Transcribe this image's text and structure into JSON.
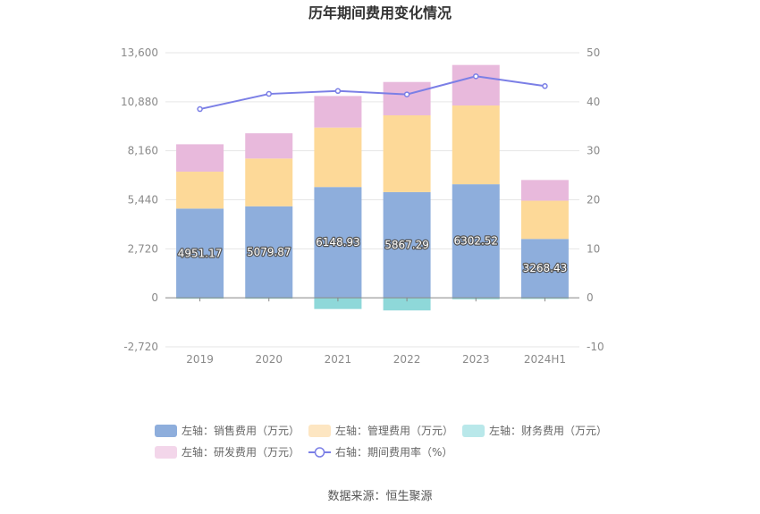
{
  "chart_data": {
    "type": "bar",
    "title": "历年期间费用变化情况",
    "categories": [
      "2019",
      "2020",
      "2021",
      "2022",
      "2023",
      "2024H1"
    ],
    "series": [
      {
        "name": "左轴：销售费用（万元）",
        "axis": "left",
        "kind": "bar",
        "color": "#8eaedc",
        "values": [
          4951.17,
          5079.87,
          6148.93,
          5867.29,
          6302.52,
          3268.43
        ],
        "show_labels": true,
        "label_texts": [
          "4951.17",
          "5079.87",
          "6148.93",
          "5867.29",
          "6302.52",
          "3268.43"
        ]
      },
      {
        "name": "左轴：管理费用（万元）",
        "axis": "left",
        "kind": "bar",
        "color": "#fdd998",
        "values": [
          2050,
          2650,
          3300,
          4260,
          4370,
          2120
        ]
      },
      {
        "name": "左轴：财务费用（万元）",
        "axis": "left",
        "kind": "bar",
        "color": "#8ed8d9",
        "values": [
          -20,
          -30,
          -620,
          -700,
          -80,
          -60
        ]
      },
      {
        "name": "左轴：研发费用（万元）",
        "axis": "left",
        "kind": "bar",
        "color": "#e8b9dc",
        "values": [
          1520,
          1400,
          1750,
          1850,
          2250,
          1150
        ]
      },
      {
        "name": "右轴：期间费用率（%）",
        "axis": "right",
        "kind": "line",
        "color": "#7b7fe6",
        "values": [
          38.5,
          41.6,
          42.2,
          41.5,
          45.2,
          43.2
        ]
      }
    ],
    "left_axis": {
      "min": -2720,
      "max": 13600,
      "ticks": [
        -2720,
        0,
        2720,
        5440,
        8160,
        10880,
        13600
      ],
      "tick_labels": [
        "-2,720",
        "0",
        "2,720",
        "5,440",
        "8,160",
        "10,880",
        "13,600"
      ]
    },
    "right_axis": {
      "min": -10,
      "max": 50,
      "ticks": [
        -10,
        0,
        10,
        20,
        30,
        40,
        50
      ],
      "tick_labels": [
        "-10",
        "0",
        "10",
        "20",
        "30",
        "40",
        "50"
      ]
    },
    "legend": {
      "placement": "bottom",
      "items": [
        "左轴：销售费用（万元）",
        "左轴：管理费用（万元）",
        "左轴：财务费用（万元）",
        "左轴：研发费用（万元）",
        "右轴：期间费用率（%）"
      ]
    },
    "source": "数据来源：恒生聚源"
  }
}
